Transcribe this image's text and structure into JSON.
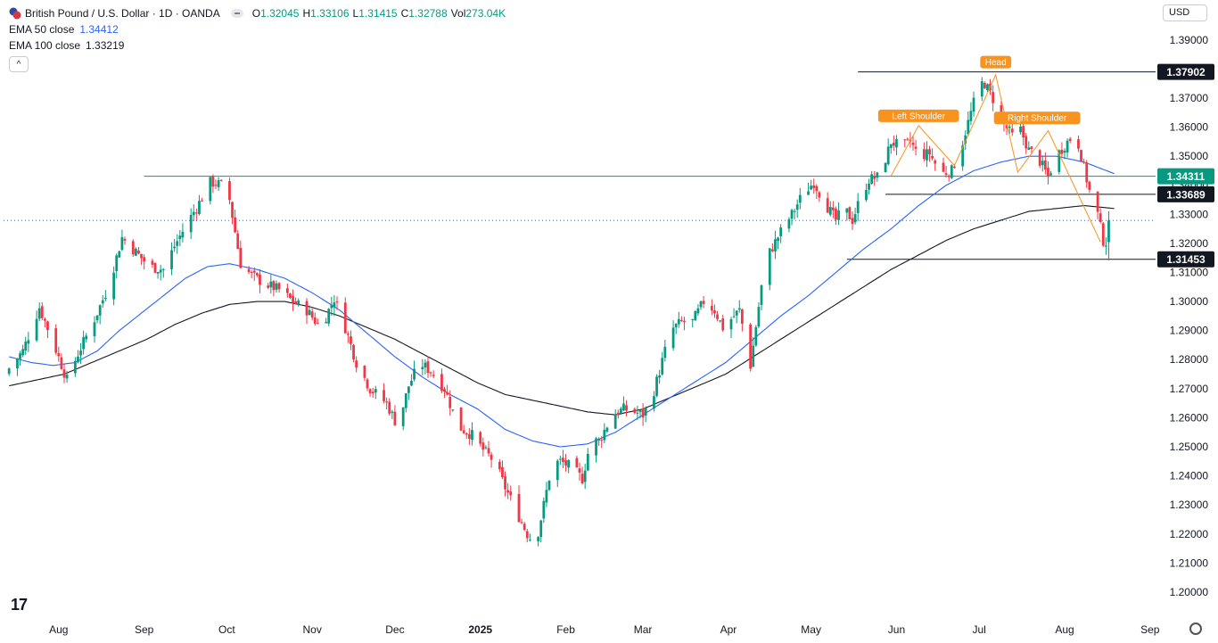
{
  "header": {
    "symbol": "British Pound / U.S. Dollar · 1D · OANDA",
    "open_key": "O",
    "open": "1.32045",
    "high_key": "H",
    "high": "1.33106",
    "low_key": "L",
    "low": "1.31415",
    "close_key": "C",
    "close": "1.32788",
    "vol_key": "Vol",
    "vol": "273.04K",
    "ema50_label": "EMA 50 close",
    "ema50_value": "1.34412",
    "ema100_label": "EMA 100 close",
    "ema100_value": "1.33219",
    "collapse": "^"
  },
  "currency": "USD",
  "logo": "17",
  "colors": {
    "up": "#089981",
    "down": "#f23645",
    "ema50": "#2962ff",
    "ema100": "#131722",
    "resistance": "#089981",
    "level": "#131722",
    "pattern": "#f7931e",
    "axis_text": "#131722"
  },
  "chart_data": {
    "type": "candlestick",
    "title": "British Pound / U.S. Dollar · 1D · OANDA",
    "y_ticks": [
      "1.39000",
      "1.37000",
      "1.36000",
      "1.35000",
      "1.34000",
      "1.33000",
      "1.32000",
      "1.31000",
      "1.30000",
      "1.29000",
      "1.28000",
      "1.27000",
      "1.26000",
      "1.25000",
      "1.24000",
      "1.23000",
      "1.22000",
      "1.21000",
      "1.20000"
    ],
    "y_range": [
      1.192,
      1.397
    ],
    "x_labels": [
      {
        "label": "Aug",
        "day": 18
      },
      {
        "label": "Sep",
        "day": 49
      },
      {
        "label": "Oct",
        "day": 79
      },
      {
        "label": "Nov",
        "day": 110
      },
      {
        "label": "Dec",
        "day": 140
      },
      {
        "label": "2025",
        "day": 171,
        "bold": true
      },
      {
        "label": "Feb",
        "day": 202
      },
      {
        "label": "Mar",
        "day": 230
      },
      {
        "label": "Apr",
        "day": 261
      },
      {
        "label": "May",
        "day": 291
      },
      {
        "label": "Jun",
        "day": 322
      },
      {
        "label": "Jul",
        "day": 352
      },
      {
        "label": "Aug",
        "day": 383
      },
      {
        "label": "Sep",
        "day": 414
      }
    ],
    "close_path": [
      [
        0,
        1.277
      ],
      [
        5,
        1.283
      ],
      [
        11,
        1.298
      ],
      [
        16,
        1.286
      ],
      [
        21,
        1.273
      ],
      [
        25,
        1.282
      ],
      [
        31,
        1.294
      ],
      [
        36,
        1.305
      ],
      [
        41,
        1.322
      ],
      [
        47,
        1.316
      ],
      [
        51,
        1.312
      ],
      [
        56,
        1.311
      ],
      [
        60,
        1.319
      ],
      [
        64,
        1.326
      ],
      [
        69,
        1.334
      ],
      [
        73,
        1.341
      ],
      [
        78,
        1.34
      ],
      [
        80,
        1.335
      ],
      [
        84,
        1.313
      ],
      [
        88,
        1.309
      ],
      [
        93,
        1.306
      ],
      [
        98,
        1.304
      ],
      [
        103,
        1.3
      ],
      [
        108,
        1.297
      ],
      [
        113,
        1.291
      ],
      [
        118,
        1.301
      ],
      [
        122,
        1.291
      ],
      [
        126,
        1.279
      ],
      [
        131,
        1.27
      ],
      [
        137,
        1.265
      ],
      [
        141,
        1.257
      ],
      [
        145,
        1.271
      ],
      [
        149,
        1.279
      ],
      [
        153,
        1.276
      ],
      [
        158,
        1.27
      ],
      [
        163,
        1.257
      ],
      [
        168,
        1.254
      ],
      [
        172,
        1.249
      ],
      [
        176,
        1.245
      ],
      [
        180,
        1.236
      ],
      [
        184,
        1.228
      ],
      [
        188,
        1.22
      ],
      [
        191,
        1.216
      ],
      [
        194,
        1.23
      ],
      [
        197,
        1.244
      ],
      [
        200,
        1.245
      ],
      [
        204,
        1.243
      ],
      [
        208,
        1.239
      ],
      [
        211,
        1.252
      ],
      [
        214,
        1.252
      ],
      [
        219,
        1.261
      ],
      [
        223,
        1.263
      ],
      [
        227,
        1.262
      ],
      [
        230,
        1.261
      ],
      [
        233,
        1.266
      ],
      [
        236,
        1.276
      ],
      [
        240,
        1.29
      ],
      [
        244,
        1.293
      ],
      [
        248,
        1.293
      ],
      [
        252,
        1.3
      ],
      [
        256,
        1.297
      ],
      [
        259,
        1.291
      ],
      [
        262,
        1.294
      ],
      [
        265,
        1.297
      ],
      [
        269,
        1.278
      ],
      [
        273,
        1.305
      ],
      [
        276,
        1.317
      ],
      [
        280,
        1.324
      ],
      [
        284,
        1.33
      ],
      [
        288,
        1.337
      ],
      [
        292,
        1.341
      ],
      [
        296,
        1.334
      ],
      [
        300,
        1.328
      ],
      [
        303,
        1.332
      ],
      [
        306,
        1.328
      ],
      [
        309,
        1.336
      ],
      [
        312,
        1.342
      ],
      [
        316,
        1.343
      ],
      [
        320,
        1.355
      ],
      [
        324,
        1.353
      ],
      [
        327,
        1.355
      ],
      [
        330,
        1.35
      ],
      [
        334,
        1.351
      ],
      [
        338,
        1.344
      ],
      [
        342,
        1.345
      ],
      [
        346,
        1.355
      ],
      [
        349,
        1.365
      ],
      [
        352,
        1.375
      ],
      [
        354,
        1.375
      ],
      [
        358,
        1.368
      ],
      [
        361,
        1.361
      ],
      [
        364,
        1.357
      ],
      [
        367,
        1.359
      ],
      [
        370,
        1.352
      ],
      [
        373,
        1.35
      ],
      [
        377,
        1.343
      ],
      [
        380,
        1.35
      ],
      [
        384,
        1.355
      ],
      [
        387,
        1.358
      ],
      [
        390,
        1.346
      ],
      [
        392,
        1.338
      ],
      [
        395,
        1.33
      ],
      [
        397,
        1.321
      ],
      [
        399,
        1.32
      ],
      [
        401,
        1.328
      ]
    ],
    "ema50_path": [
      [
        0,
        1.281
      ],
      [
        8,
        1.279
      ],
      [
        16,
        1.278
      ],
      [
        24,
        1.279
      ],
      [
        32,
        1.283
      ],
      [
        40,
        1.29
      ],
      [
        48,
        1.296
      ],
      [
        56,
        1.302
      ],
      [
        64,
        1.308
      ],
      [
        72,
        1.312
      ],
      [
        80,
        1.313
      ],
      [
        90,
        1.311
      ],
      [
        100,
        1.308
      ],
      [
        110,
        1.303
      ],
      [
        120,
        1.297
      ],
      [
        130,
        1.289
      ],
      [
        140,
        1.281
      ],
      [
        150,
        1.274
      ],
      [
        160,
        1.268
      ],
      [
        170,
        1.263
      ],
      [
        180,
        1.256
      ],
      [
        190,
        1.252
      ],
      [
        200,
        1.25
      ],
      [
        210,
        1.251
      ],
      [
        220,
        1.255
      ],
      [
        230,
        1.261
      ],
      [
        240,
        1.267
      ],
      [
        250,
        1.273
      ],
      [
        260,
        1.279
      ],
      [
        270,
        1.287
      ],
      [
        280,
        1.295
      ],
      [
        290,
        1.302
      ],
      [
        300,
        1.31
      ],
      [
        310,
        1.318
      ],
      [
        320,
        1.325
      ],
      [
        330,
        1.333
      ],
      [
        340,
        1.34
      ],
      [
        350,
        1.345
      ],
      [
        360,
        1.348
      ],
      [
        370,
        1.35
      ],
      [
        380,
        1.35
      ],
      [
        390,
        1.348
      ],
      [
        401,
        1.344
      ]
    ],
    "ema100_path": [
      [
        0,
        1.271
      ],
      [
        10,
        1.273
      ],
      [
        20,
        1.275
      ],
      [
        30,
        1.279
      ],
      [
        40,
        1.283
      ],
      [
        50,
        1.287
      ],
      [
        60,
        1.292
      ],
      [
        70,
        1.296
      ],
      [
        80,
        1.299
      ],
      [
        90,
        1.3
      ],
      [
        100,
        1.3
      ],
      [
        110,
        1.298
      ],
      [
        120,
        1.295
      ],
      [
        130,
        1.291
      ],
      [
        140,
        1.287
      ],
      [
        150,
        1.282
      ],
      [
        160,
        1.277
      ],
      [
        170,
        1.272
      ],
      [
        180,
        1.268
      ],
      [
        190,
        1.266
      ],
      [
        200,
        1.264
      ],
      [
        210,
        1.262
      ],
      [
        220,
        1.261
      ],
      [
        230,
        1.263
      ],
      [
        240,
        1.267
      ],
      [
        250,
        1.271
      ],
      [
        260,
        1.275
      ],
      [
        270,
        1.281
      ],
      [
        280,
        1.287
      ],
      [
        290,
        1.293
      ],
      [
        300,
        1.299
      ],
      [
        310,
        1.305
      ],
      [
        320,
        1.311
      ],
      [
        330,
        1.316
      ],
      [
        340,
        1.321
      ],
      [
        350,
        1.325
      ],
      [
        360,
        1.328
      ],
      [
        370,
        1.331
      ],
      [
        380,
        1.332
      ],
      [
        390,
        1.333
      ],
      [
        401,
        1.332
      ]
    ],
    "levels": [
      {
        "value": 1.37902,
        "label": "1.37902",
        "from_day": 308,
        "style": "black"
      },
      {
        "value": 1.34311,
        "label": "1.34311",
        "from_day": 49,
        "style": "green"
      },
      {
        "value": 1.33689,
        "label": "1.33689",
        "from_day": 318,
        "style": "black"
      },
      {
        "value": 1.31453,
        "label": "1.31453",
        "from_day": 304,
        "style": "black"
      }
    ],
    "last_price": 1.32788,
    "annotations": [
      {
        "label": "Head",
        "day": 358,
        "value": 1.37902
      },
      {
        "label": "Left Shoulder",
        "day": 330,
        "value": 1.3605
      },
      {
        "label": "Right Shoulder",
        "day": 373,
        "value": 1.3598
      }
    ],
    "pattern_lines": [
      [
        [
          320,
          1.3432
        ],
        [
          330,
          1.3605
        ],
        [
          343,
          1.3468
        ],
        [
          358,
          1.378
        ],
        [
          366,
          1.3445
        ],
        [
          377,
          1.3588
        ],
        [
          396,
          1.3205
        ]
      ]
    ]
  }
}
